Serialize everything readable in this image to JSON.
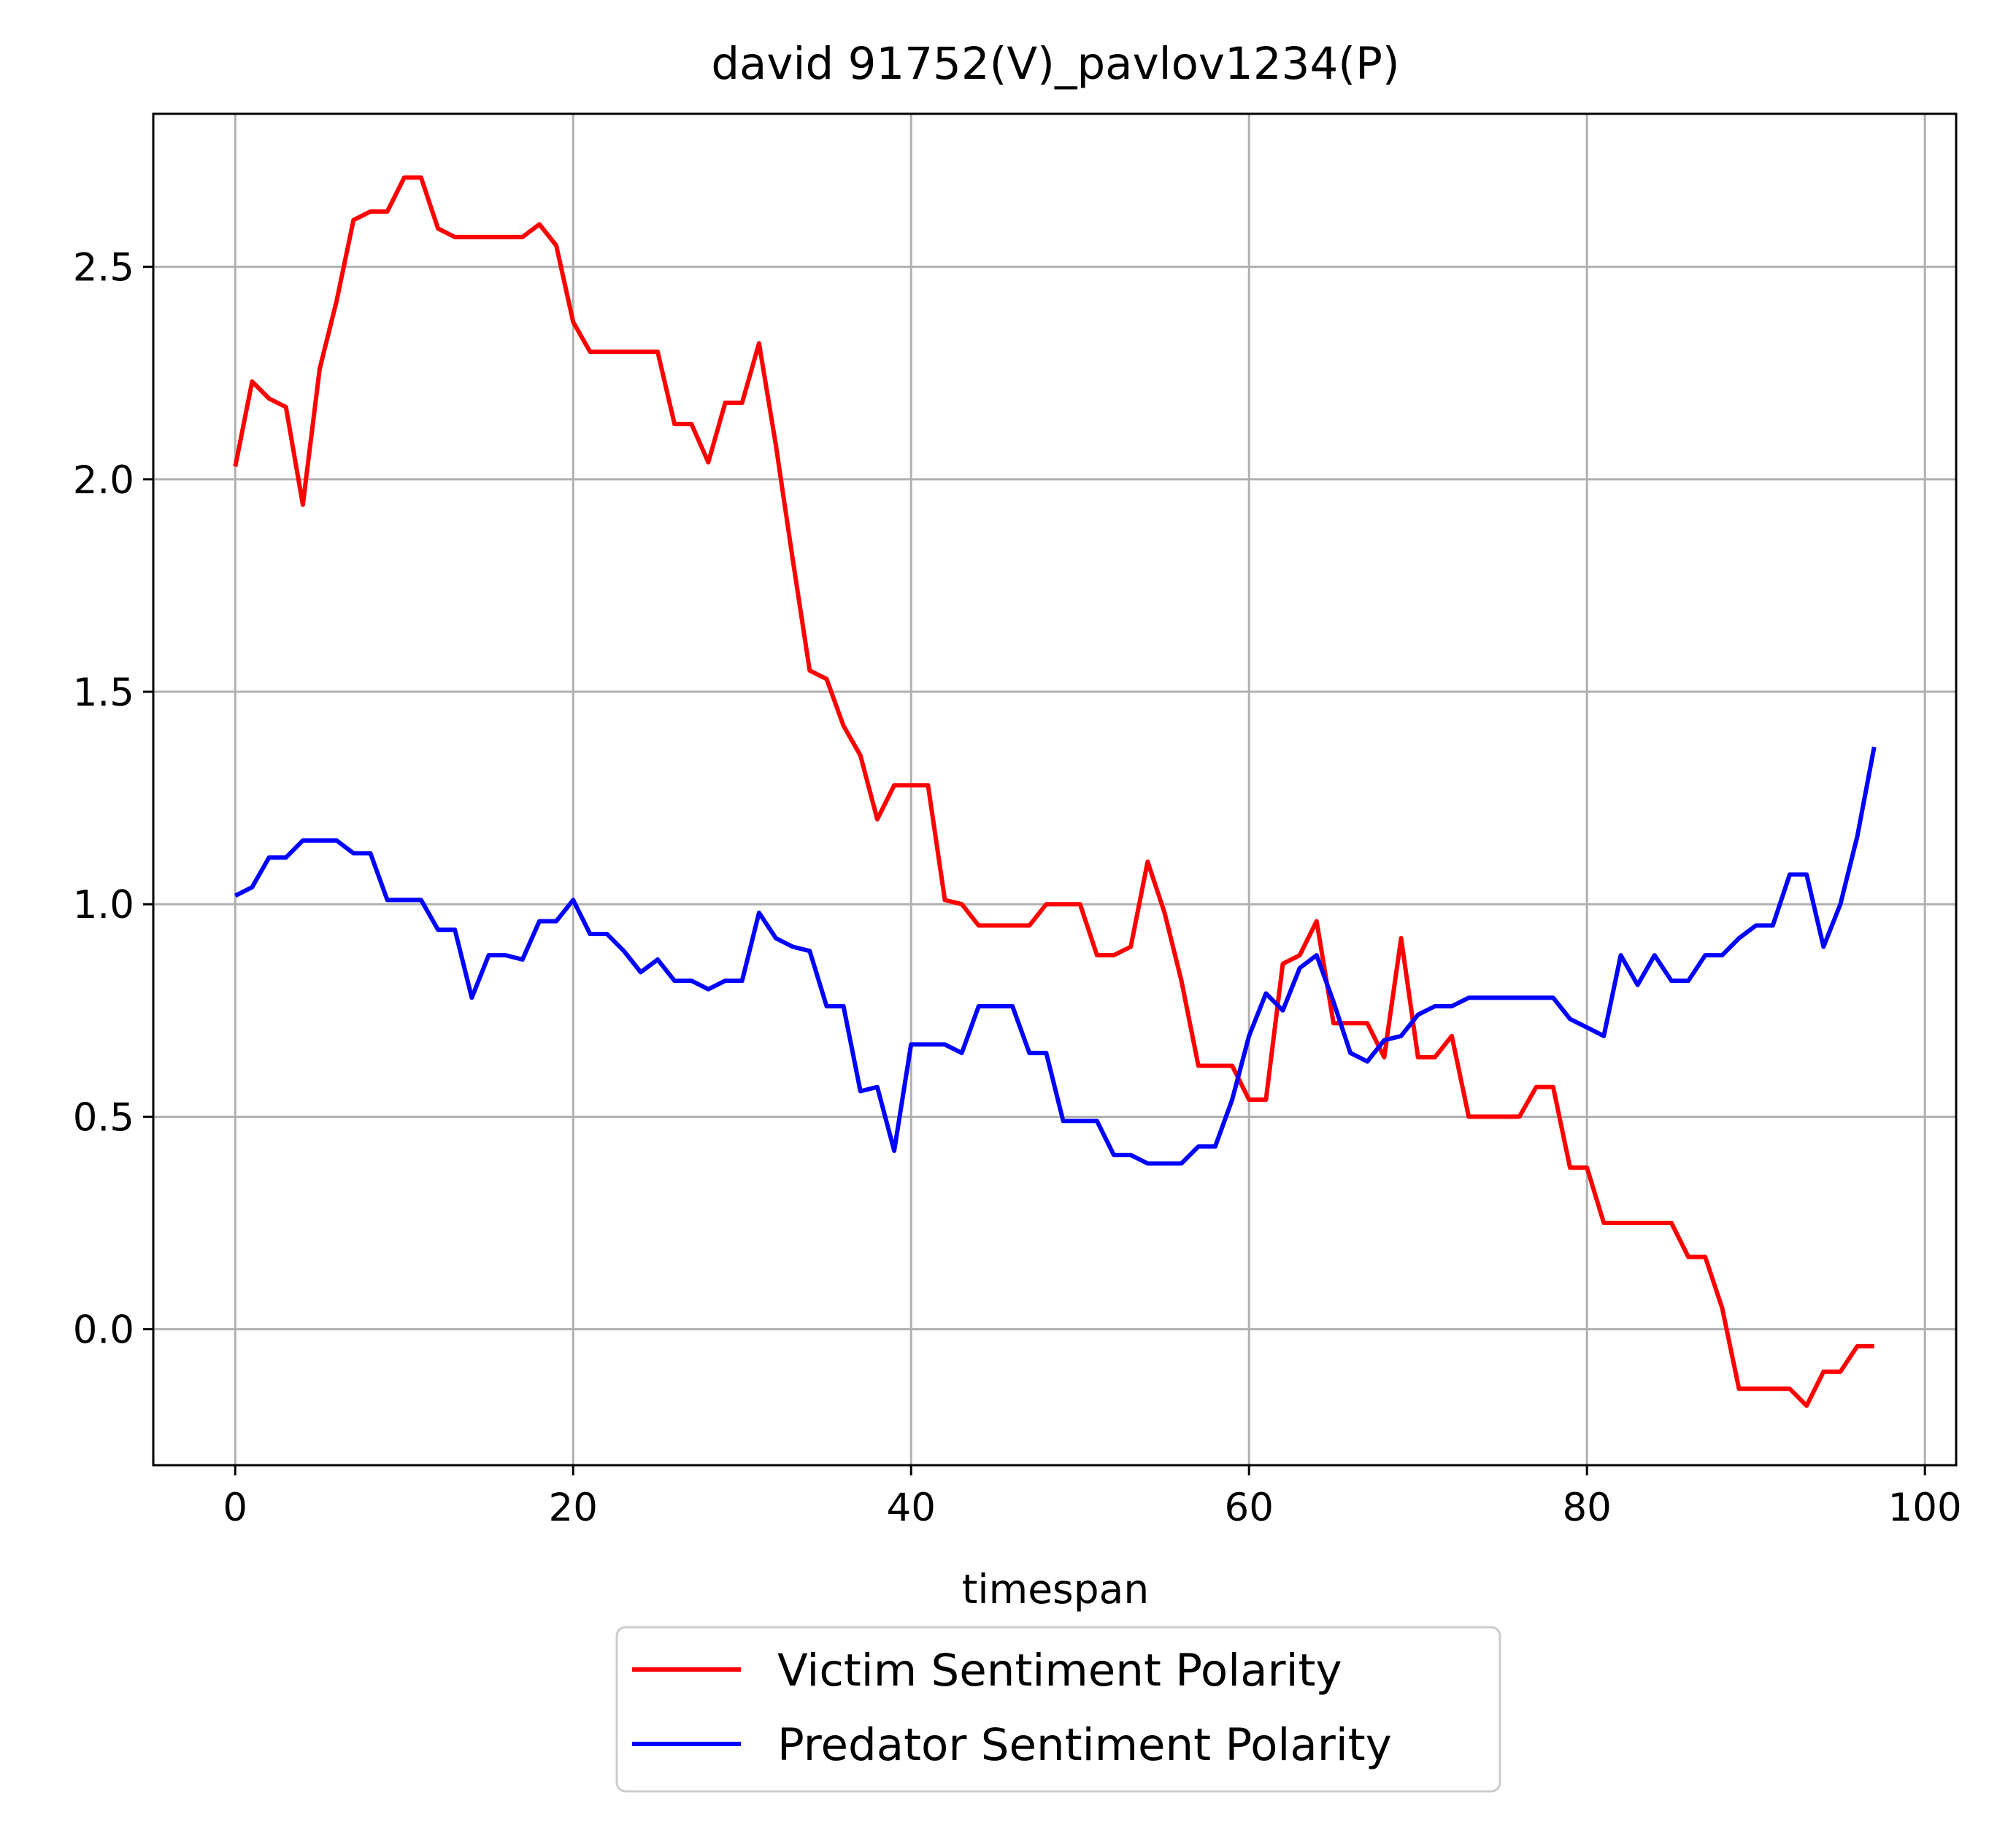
{
  "chart_data": {
    "type": "line",
    "title": "david 91752(V)_pavlov1234(P)",
    "xlabel": "timespan",
    "ylabel": "",
    "xlim": [
      -4.85,
      101.85
    ],
    "ylim": [
      -0.32,
      2.86
    ],
    "xticks": [
      0,
      20,
      40,
      60,
      80,
      100
    ],
    "yticks": [
      0.0,
      0.5,
      1.0,
      1.5,
      2.0,
      2.5
    ],
    "xtick_labels": [
      "0",
      "20",
      "40",
      "60",
      "80",
      "100"
    ],
    "ytick_labels": [
      "0.0",
      "0.5",
      "1.0",
      "1.5",
      "2.0",
      "2.5"
    ],
    "grid": true,
    "legend_position": "below plot, centered",
    "series": [
      {
        "name": "Victim Sentiment Polarity",
        "color": "#ff0000",
        "x": [
          0,
          1,
          2,
          3,
          4,
          5,
          6,
          7,
          8,
          9,
          10,
          11,
          12,
          13,
          14,
          15,
          16,
          17,
          18,
          19,
          20,
          21,
          22,
          23,
          24,
          25,
          26,
          27,
          28,
          29,
          30,
          31,
          32,
          33,
          34,
          35,
          36,
          37,
          38,
          39,
          40,
          41,
          42,
          43,
          44,
          45,
          46,
          47,
          48,
          49,
          50,
          51,
          52,
          53,
          54,
          55,
          56,
          57,
          58,
          59,
          60,
          61,
          62,
          63,
          64,
          65,
          66,
          67,
          68,
          69,
          70,
          71,
          72,
          73,
          74,
          75,
          76,
          77,
          78,
          79,
          80,
          81,
          82,
          83,
          84,
          85,
          86,
          87,
          88,
          89,
          90,
          91,
          92,
          93,
          94,
          95,
          96,
          97
        ],
        "y": [
          2.03,
          2.23,
          2.19,
          2.17,
          1.94,
          2.26,
          2.42,
          2.61,
          2.63,
          2.63,
          2.71,
          2.71,
          2.59,
          2.57,
          2.57,
          2.57,
          2.57,
          2.57,
          2.6,
          2.55,
          2.37,
          2.3,
          2.3,
          2.3,
          2.3,
          2.3,
          2.13,
          2.13,
          2.04,
          2.18,
          2.18,
          2.32,
          2.08,
          1.81,
          1.55,
          1.53,
          1.42,
          1.35,
          1.2,
          1.28,
          1.28,
          1.28,
          1.01,
          1.0,
          0.95,
          0.95,
          0.95,
          0.95,
          1.0,
          1.0,
          1.0,
          0.88,
          0.88,
          0.9,
          1.1,
          0.98,
          0.82,
          0.62,
          0.62,
          0.62,
          0.54,
          0.54,
          0.86,
          0.88,
          0.96,
          0.72,
          0.72,
          0.72,
          0.64,
          0.92,
          0.64,
          0.64,
          0.69,
          0.5,
          0.5,
          0.5,
          0.5,
          0.57,
          0.57,
          0.38,
          0.38,
          0.25,
          0.25,
          0.25,
          0.25,
          0.25,
          0.17,
          0.17,
          0.05,
          -0.14,
          -0.14,
          -0.14,
          -0.14,
          -0.18,
          -0.1,
          -0.1,
          -0.04,
          -0.04
        ]
      },
      {
        "name": "Predator Sentiment Polarity",
        "color": "#0000ff",
        "x": [
          0,
          1,
          2,
          3,
          4,
          5,
          6,
          7,
          8,
          9,
          10,
          11,
          12,
          13,
          14,
          15,
          16,
          17,
          18,
          19,
          20,
          21,
          22,
          23,
          24,
          25,
          26,
          27,
          28,
          29,
          30,
          31,
          32,
          33,
          34,
          35,
          36,
          37,
          38,
          39,
          40,
          41,
          42,
          43,
          44,
          45,
          46,
          47,
          48,
          49,
          50,
          51,
          52,
          53,
          54,
          55,
          56,
          57,
          58,
          59,
          60,
          61,
          62,
          63,
          64,
          65,
          66,
          67,
          68,
          69,
          70,
          71,
          72,
          73,
          74,
          75,
          76,
          77,
          78,
          79,
          80,
          81,
          82,
          83,
          84,
          85,
          86,
          87,
          88,
          89,
          90,
          91,
          92,
          93,
          94,
          95,
          96,
          97
        ],
        "y": [
          1.02,
          1.04,
          1.11,
          1.11,
          1.15,
          1.15,
          1.15,
          1.12,
          1.12,
          1.01,
          1.01,
          1.01,
          0.94,
          0.94,
          0.78,
          0.88,
          0.88,
          0.87,
          0.96,
          0.96,
          1.01,
          0.93,
          0.93,
          0.89,
          0.84,
          0.87,
          0.82,
          0.82,
          0.8,
          0.82,
          0.82,
          0.98,
          0.92,
          0.9,
          0.89,
          0.76,
          0.76,
          0.56,
          0.57,
          0.42,
          0.67,
          0.67,
          0.67,
          0.65,
          0.76,
          0.76,
          0.76,
          0.65,
          0.65,
          0.49,
          0.49,
          0.49,
          0.41,
          0.41,
          0.39,
          0.39,
          0.39,
          0.43,
          0.43,
          0.54,
          0.69,
          0.79,
          0.75,
          0.85,
          0.88,
          0.77,
          0.65,
          0.63,
          0.68,
          0.69,
          0.74,
          0.76,
          0.76,
          0.78,
          0.78,
          0.78,
          0.78,
          0.78,
          0.78,
          0.73,
          0.71,
          0.69,
          0.88,
          0.81,
          0.88,
          0.82,
          0.82,
          0.88,
          0.88,
          0.92,
          0.95,
          0.95,
          1.07,
          1.07,
          0.9,
          1.0,
          1.16,
          1.37
        ]
      }
    ]
  }
}
